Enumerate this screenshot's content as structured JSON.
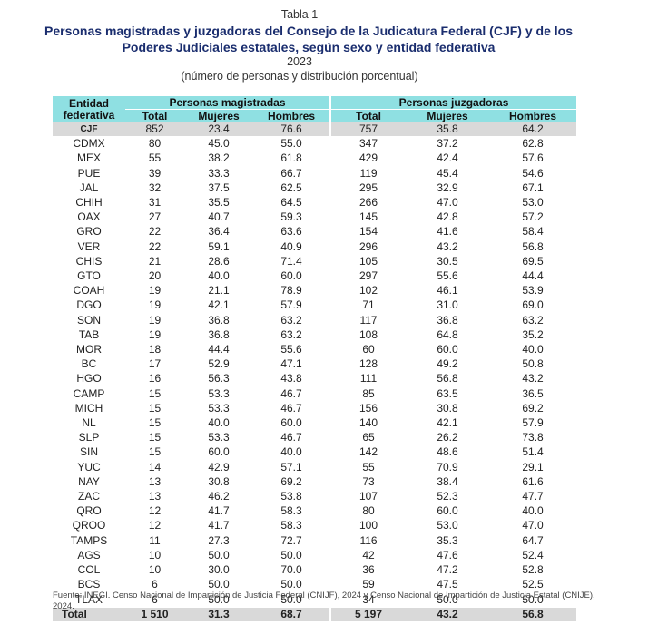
{
  "header": {
    "caption": "Tabla 1",
    "title": "Personas magistradas y juzgadoras del Consejo de la Judicatura Federal (CJF) y de los Poderes Judiciales estatales, según sexo y entidad federativa",
    "year": "2023",
    "subtitle": "(número de personas y distribución porcentual)"
  },
  "table": {
    "entity_header": "Entidad federativa",
    "group1": "Personas magistradas",
    "group2": "Personas juzgadoras",
    "columns": [
      "Total",
      "Mujeres",
      "Hombres",
      "Total",
      "Mujeres",
      "Hombres"
    ],
    "rows": [
      [
        "CJF",
        "852",
        "23.4",
        "76.6",
        "757",
        "35.8",
        "64.2"
      ],
      [
        "CDMX",
        "80",
        "45.0",
        "55.0",
        "347",
        "37.2",
        "62.8"
      ],
      [
        "MEX",
        "55",
        "38.2",
        "61.8",
        "429",
        "42.4",
        "57.6"
      ],
      [
        "PUE",
        "39",
        "33.3",
        "66.7",
        "119",
        "45.4",
        "54.6"
      ],
      [
        "JAL",
        "32",
        "37.5",
        "62.5",
        "295",
        "32.9",
        "67.1"
      ],
      [
        "CHIH",
        "31",
        "35.5",
        "64.5",
        "266",
        "47.0",
        "53.0"
      ],
      [
        "OAX",
        "27",
        "40.7",
        "59.3",
        "145",
        "42.8",
        "57.2"
      ],
      [
        "GRO",
        "22",
        "36.4",
        "63.6",
        "154",
        "41.6",
        "58.4"
      ],
      [
        "VER",
        "22",
        "59.1",
        "40.9",
        "296",
        "43.2",
        "56.8"
      ],
      [
        "CHIS",
        "21",
        "28.6",
        "71.4",
        "105",
        "30.5",
        "69.5"
      ],
      [
        "GTO",
        "20",
        "40.0",
        "60.0",
        "297",
        "55.6",
        "44.4"
      ],
      [
        "COAH",
        "19",
        "21.1",
        "78.9",
        "102",
        "46.1",
        "53.9"
      ],
      [
        "DGO",
        "19",
        "42.1",
        "57.9",
        "71",
        "31.0",
        "69.0"
      ],
      [
        "SON",
        "19",
        "36.8",
        "63.2",
        "117",
        "36.8",
        "63.2"
      ],
      [
        "TAB",
        "19",
        "36.8",
        "63.2",
        "108",
        "64.8",
        "35.2"
      ],
      [
        "MOR",
        "18",
        "44.4",
        "55.6",
        "60",
        "60.0",
        "40.0"
      ],
      [
        "BC",
        "17",
        "52.9",
        "47.1",
        "128",
        "49.2",
        "50.8"
      ],
      [
        "HGO",
        "16",
        "56.3",
        "43.8",
        "111",
        "56.8",
        "43.2"
      ],
      [
        "CAMP",
        "15",
        "53.3",
        "46.7",
        "85",
        "63.5",
        "36.5"
      ],
      [
        "MICH",
        "15",
        "53.3",
        "46.7",
        "156",
        "30.8",
        "69.2"
      ],
      [
        "NL",
        "15",
        "40.0",
        "60.0",
        "140",
        "42.1",
        "57.9"
      ],
      [
        "SLP",
        "15",
        "53.3",
        "46.7",
        "65",
        "26.2",
        "73.8"
      ],
      [
        "SIN",
        "15",
        "60.0",
        "40.0",
        "142",
        "48.6",
        "51.4"
      ],
      [
        "YUC",
        "14",
        "42.9",
        "57.1",
        "55",
        "70.9",
        "29.1"
      ],
      [
        "NAY",
        "13",
        "30.8",
        "69.2",
        "73",
        "38.4",
        "61.6"
      ],
      [
        "ZAC",
        "13",
        "46.2",
        "53.8",
        "107",
        "52.3",
        "47.7"
      ],
      [
        "QRO",
        "12",
        "41.7",
        "58.3",
        "80",
        "60.0",
        "40.0"
      ],
      [
        "QROO",
        "12",
        "41.7",
        "58.3",
        "100",
        "53.0",
        "47.0"
      ],
      [
        "TAMPS",
        "11",
        "27.3",
        "72.7",
        "116",
        "35.3",
        "64.7"
      ],
      [
        "AGS",
        "10",
        "50.0",
        "50.0",
        "42",
        "47.6",
        "52.4"
      ],
      [
        "COL",
        "10",
        "30.0",
        "70.0",
        "36",
        "47.2",
        "52.8"
      ],
      [
        "BCS",
        "6",
        "50.0",
        "50.0",
        "59",
        "47.5",
        "52.5"
      ],
      [
        "TLAX",
        "6",
        "50.0",
        "50.0",
        "34",
        "50.0",
        "50.0"
      ]
    ],
    "total": [
      "Total",
      "1 510",
      "31.3",
      "68.7",
      "5 197",
      "43.2",
      "56.8"
    ]
  },
  "footer": {
    "source": "Fuente: INEGI. Censo Nacional de Impartición de Justicia Federal (CNIJF), 2024 y Censo Nacional de Impartición de Justicia Estatal (CNIJE), 2024."
  },
  "colors": {
    "header_bg": "#8fe0e2",
    "highlight_row_bg": "#d9d9d9",
    "title_color": "#1a2d6e"
  }
}
